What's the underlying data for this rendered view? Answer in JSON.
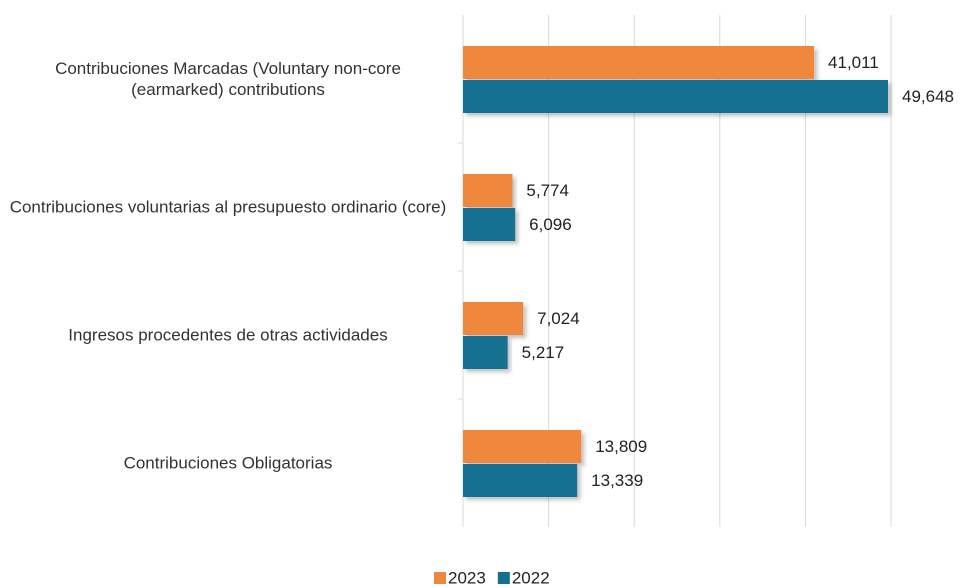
{
  "chart_data": {
    "type": "bar",
    "orientation": "horizontal",
    "categories": [
      "Contribuciones Marcadas (Voluntary non-core (earmarked) contributions",
      "Contribuciones voluntarias al presupuesto ordinario (core)",
      "Ingresos procedentes de otras actividades",
      "Contribuciones Obligatorias"
    ],
    "series": [
      {
        "name": "2023",
        "color": "#ef873d",
        "values": [
          41011,
          5774,
          7024,
          13809
        ],
        "value_labels": [
          "41,011",
          "5,774",
          "7,024",
          "13,809"
        ]
      },
      {
        "name": "2022",
        "color": "#17708f",
        "values": [
          49648,
          6096,
          5217,
          13339
        ],
        "value_labels": [
          "49,648",
          "6,096",
          "5,217",
          "13,339"
        ]
      }
    ],
    "xlim": [
      0,
      50000
    ],
    "xticks": [
      0,
      10000,
      20000,
      30000,
      40000,
      50000
    ],
    "grid": true,
    "legend": "bottom"
  }
}
